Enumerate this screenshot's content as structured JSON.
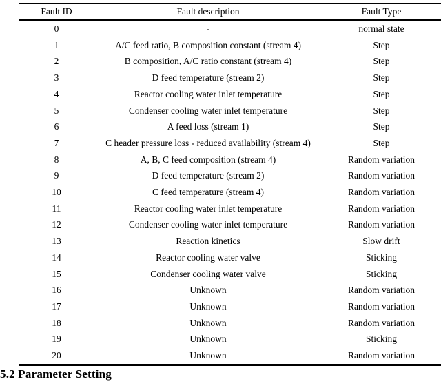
{
  "table": {
    "columns": [
      "Fault ID",
      "Fault description",
      "Fault Type"
    ],
    "rows": [
      [
        "0",
        "-",
        "normal state"
      ],
      [
        "1",
        "A/C feed ratio, B composition constant (stream 4)",
        "Step"
      ],
      [
        "2",
        "B composition, A/C ratio constant (stream 4)",
        "Step"
      ],
      [
        "3",
        "D feed temperature (stream 2)",
        "Step"
      ],
      [
        "4",
        "Reactor cooling water inlet temperature",
        "Step"
      ],
      [
        "5",
        "Condenser cooling water inlet temperature",
        "Step"
      ],
      [
        "6",
        "A feed loss (stream 1)",
        "Step"
      ],
      [
        "7",
        "C header pressure loss - reduced availability (stream 4)",
        "Step"
      ],
      [
        "8",
        "A, B, C feed composition (stream 4)",
        "Random variation"
      ],
      [
        "9",
        "D feed temperature (stream 2)",
        "Random variation"
      ],
      [
        "10",
        "C feed temperature (stream 4)",
        "Random variation"
      ],
      [
        "11",
        "Reactor cooling water inlet temperature",
        "Random variation"
      ],
      [
        "12",
        "Condenser cooling water inlet temperature",
        "Random variation"
      ],
      [
        "13",
        "Reaction kinetics",
        "Slow drift"
      ],
      [
        "14",
        "Reactor cooling water valve",
        "Sticking"
      ],
      [
        "15",
        "Condenser cooling water valve",
        "Sticking"
      ],
      [
        "16",
        "Unknown",
        "Random variation"
      ],
      [
        "17",
        "Unknown",
        "Random variation"
      ],
      [
        "18",
        "Unknown",
        "Random variation"
      ],
      [
        "19",
        "Unknown",
        "Sticking"
      ],
      [
        "20",
        "Unknown",
        "Random variation"
      ]
    ]
  },
  "section_heading": "5.2 Parameter Setting",
  "colors": {
    "text": "#000000",
    "background": "#ffffff",
    "rule": "#000000"
  }
}
